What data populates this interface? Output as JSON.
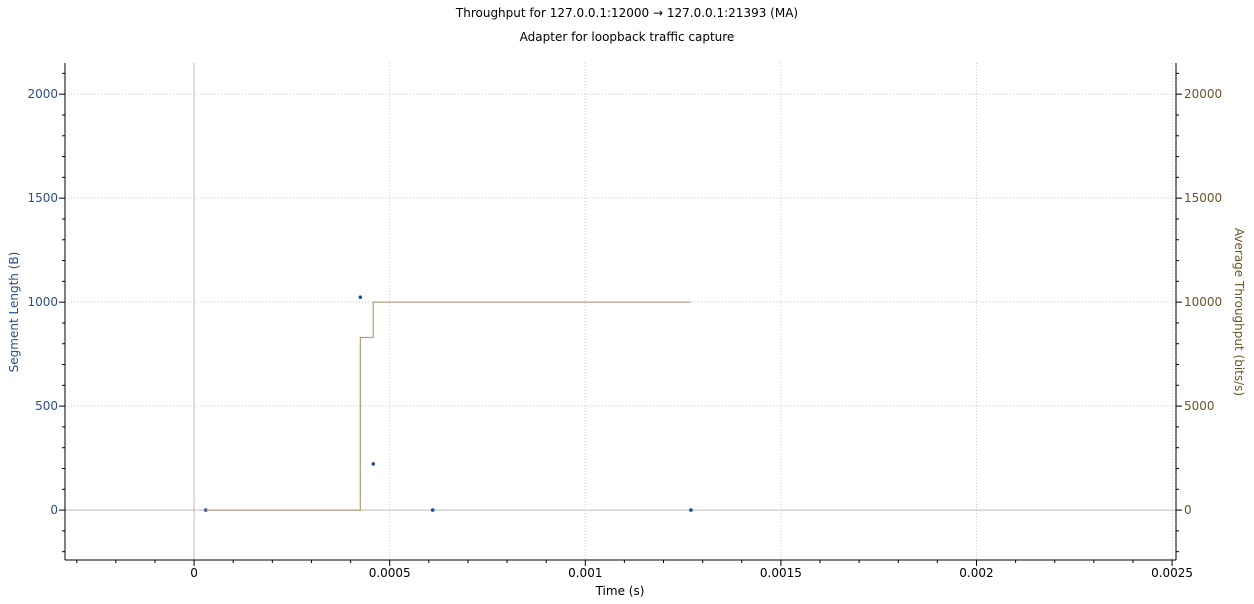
{
  "chart_data": {
    "type": "line",
    "title": "Throughput for 127.0.0.1:12000 → 127.0.0.1:21393 (MA)",
    "subtitle": "Adapter for loopback traffic capture",
    "xlabel": "Time (s)",
    "ylabel_left": "Segment Length (B)",
    "ylabel_right": "Average Throughput (bits/s)",
    "xlim": [
      -0.00033,
      0.00251
    ],
    "ylim_left": [
      -240,
      2150
    ],
    "ylim_right": [
      -2400,
      21500
    ],
    "x_ticks": [
      0,
      0.0005,
      0.001,
      0.0015,
      0.002,
      0.0025
    ],
    "x_tick_labels": [
      "0",
      "0.0005",
      "0.001",
      "0.0015",
      "0.002",
      "0.0025"
    ],
    "y_left_ticks": [
      0,
      500,
      1000,
      1500,
      2000
    ],
    "y_left_tick_labels": [
      "0",
      "500",
      "1000",
      "1500",
      "2000"
    ],
    "y_right_ticks": [
      0,
      5000,
      10000,
      15000,
      20000
    ],
    "y_right_tick_labels": [
      "0",
      "5000",
      "10000",
      "15000",
      "20000"
    ],
    "grid": true,
    "series": [
      {
        "axis": "left",
        "kind": "scatter",
        "color": "#1f4e9c",
        "x": [
          3e-05,
          0.000425,
          0.000458,
          0.00061,
          0.00127
        ],
        "y": [
          0,
          1024,
          222,
          0,
          0
        ]
      },
      {
        "axis": "right",
        "kind": "step",
        "color": "#b5a07a",
        "x": [
          3e-05,
          0.000425,
          0.000458,
          0.00127
        ],
        "y": [
          0,
          8300,
          10000,
          10000
        ]
      }
    ]
  }
}
